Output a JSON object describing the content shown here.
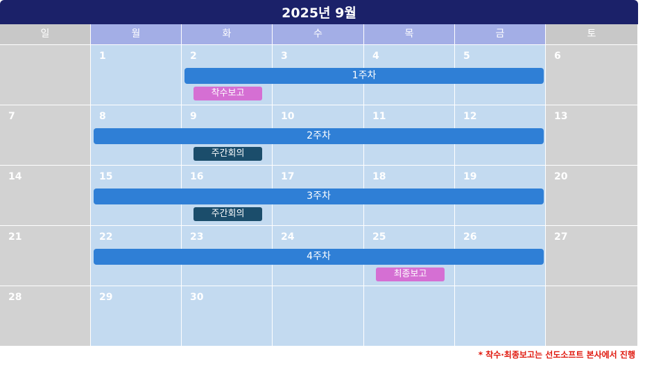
{
  "calendar": {
    "title": "2025년 9월",
    "weekdays": [
      "일",
      "월",
      "화",
      "수",
      "목",
      "금",
      "토"
    ],
    "weeks": [
      [
        "",
        "1",
        "2",
        "3",
        "4",
        "5",
        "6"
      ],
      [
        "7",
        "8",
        "9",
        "10",
        "11",
        "12",
        "13"
      ],
      [
        "14",
        "15",
        "16",
        "17",
        "18",
        "19",
        "20"
      ],
      [
        "21",
        "22",
        "23",
        "24",
        "25",
        "26",
        "27"
      ],
      [
        "28",
        "29",
        "30",
        "",
        "",
        "",
        ""
      ]
    ],
    "week_bars": [
      {
        "label": "1주차",
        "week": 0,
        "start_day": 2,
        "end_day": 5
      },
      {
        "label": "2주차",
        "week": 1,
        "start_day": 1,
        "end_day": 5
      },
      {
        "label": "3주차",
        "week": 2,
        "start_day": 1,
        "end_day": 5
      },
      {
        "label": "4주차",
        "week": 3,
        "start_day": 1,
        "end_day": 5
      }
    ],
    "events": [
      {
        "label": "착수보고",
        "week": 0,
        "day": 2,
        "color": "#d56fd3"
      },
      {
        "label": "주간회의",
        "week": 1,
        "day": 2,
        "color": "#1b4d6b"
      },
      {
        "label": "주간회의",
        "week": 2,
        "day": 2,
        "color": "#1b4d6b"
      },
      {
        "label": "최종보고",
        "week": 3,
        "day": 4,
        "color": "#d56fd3"
      }
    ]
  },
  "footnote": "* 착수·최종보고는 선도소프트 본사에서 진행",
  "colors": {
    "title_bg": "#1b2169",
    "weekday_header_bg": "#a3aee6",
    "weekend_header_bg": "#c8c8c8",
    "weekday_cell_bg": "#c3daf0",
    "weekend_cell_bg": "#d2d2d2",
    "week_bar": "#2f7fd6",
    "footnote": "#e0190e"
  }
}
